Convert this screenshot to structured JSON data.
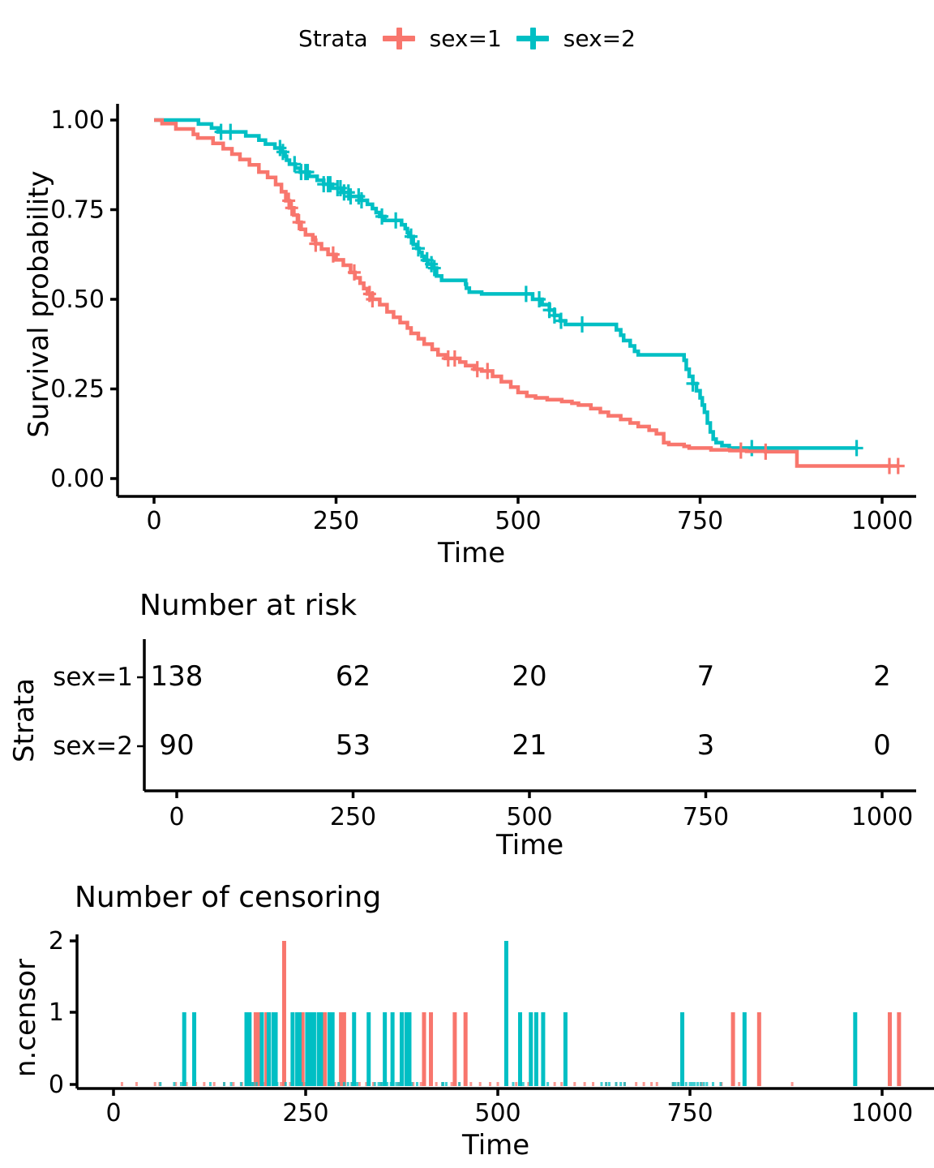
{
  "legend": {
    "title": "Strata",
    "items": [
      {
        "label": "sex=1",
        "color": "#F8766D"
      },
      {
        "label": "sex=2",
        "color": "#00BFC4"
      }
    ]
  },
  "colors": {
    "sex1": "#F8766D",
    "sex2": "#00BFC4",
    "axis": "#000000",
    "background": "#FFFFFF"
  },
  "chart_data": [
    {
      "id": "survival_plot",
      "type": "line",
      "subtype": "kaplan-meier-step",
      "title": "",
      "xlabel": "Time",
      "ylabel": "Survival probability",
      "xticks": [
        0,
        250,
        500,
        750,
        1000
      ],
      "ytick_labels": [
        "1.00",
        "0.75",
        "0.50",
        "0.25",
        "0.00"
      ],
      "ytick_values": [
        1.0,
        0.75,
        0.5,
        0.25,
        0.0
      ],
      "xlim": [
        0,
        1040
      ],
      "ylim": [
        0,
        1
      ],
      "grid": false,
      "legend_position": "top",
      "series": [
        {
          "name": "sex=1",
          "color": "#F8766D",
          "steps": [
            [
              0,
              1.0
            ],
            [
              11,
              0.99
            ],
            [
              30,
              0.975
            ],
            [
              54,
              0.96
            ],
            [
              60,
              0.95
            ],
            [
              81,
              0.935
            ],
            [
              95,
              0.92
            ],
            [
              107,
              0.905
            ],
            [
              118,
              0.89
            ],
            [
              131,
              0.875
            ],
            [
              144,
              0.855
            ],
            [
              156,
              0.84
            ],
            [
              167,
              0.82
            ],
            [
              175,
              0.8
            ],
            [
              181,
              0.775
            ],
            [
              186,
              0.755
            ],
            [
              192,
              0.735
            ],
            [
              197,
              0.715
            ],
            [
              202,
              0.695
            ],
            [
              208,
              0.68
            ],
            [
              218,
              0.665
            ],
            [
              222,
              0.655
            ],
            [
              230,
              0.64
            ],
            [
              239,
              0.625
            ],
            [
              250,
              0.61
            ],
            [
              260,
              0.595
            ],
            [
              270,
              0.575
            ],
            [
              276,
              0.56
            ],
            [
              283,
              0.545
            ],
            [
              288,
              0.53
            ],
            [
              293,
              0.515
            ],
            [
              300,
              0.5
            ],
            [
              310,
              0.485
            ],
            [
              320,
              0.465
            ],
            [
              329,
              0.45
            ],
            [
              338,
              0.435
            ],
            [
              348,
              0.42
            ],
            [
              353,
              0.405
            ],
            [
              363,
              0.39
            ],
            [
              371,
              0.375
            ],
            [
              382,
              0.36
            ],
            [
              390,
              0.345
            ],
            [
              400,
              0.335
            ],
            [
              420,
              0.325
            ],
            [
              428,
              0.315
            ],
            [
              440,
              0.305
            ],
            [
              450,
              0.3
            ],
            [
              465,
              0.285
            ],
            [
              477,
              0.27
            ],
            [
              490,
              0.255
            ],
            [
              500,
              0.24
            ],
            [
              512,
              0.23
            ],
            [
              524,
              0.225
            ],
            [
              540,
              0.22
            ],
            [
              560,
              0.215
            ],
            [
              574,
              0.21
            ],
            [
              583,
              0.205
            ],
            [
              600,
              0.195
            ],
            [
              613,
              0.185
            ],
            [
              624,
              0.175
            ],
            [
              641,
              0.165
            ],
            [
              654,
              0.155
            ],
            [
              665,
              0.145
            ],
            [
              680,
              0.135
            ],
            [
              690,
              0.125
            ],
            [
              700,
              0.1
            ],
            [
              707,
              0.095
            ],
            [
              728,
              0.09
            ],
            [
              735,
              0.085
            ],
            [
              765,
              0.08
            ],
            [
              791,
              0.078
            ],
            [
              814,
              0.076
            ],
            [
              840,
              0.075
            ],
            [
              883,
              0.035
            ],
            [
              1022,
              0.035
            ]
          ],
          "censor_times": [
            185,
            189,
            199,
            222,
            246,
            275,
            296,
            300,
            404,
            413,
            444,
            458,
            806,
            840,
            1010,
            1022
          ]
        },
        {
          "name": "sex=2",
          "color": "#00BFC4",
          "steps": [
            [
              0,
              1.0
            ],
            [
              61,
              0.989
            ],
            [
              79,
              0.978
            ],
            [
              88,
              0.967
            ],
            [
              126,
              0.956
            ],
            [
              144,
              0.944
            ],
            [
              153,
              0.933
            ],
            [
              166,
              0.922
            ],
            [
              175,
              0.911
            ],
            [
              180,
              0.899
            ],
            [
              182,
              0.888
            ],
            [
              186,
              0.877
            ],
            [
              194,
              0.866
            ],
            [
              201,
              0.855
            ],
            [
              213,
              0.843
            ],
            [
              224,
              0.832
            ],
            [
              233,
              0.821
            ],
            [
              245,
              0.81
            ],
            [
              260,
              0.798
            ],
            [
              268,
              0.787
            ],
            [
              285,
              0.776
            ],
            [
              293,
              0.765
            ],
            [
              300,
              0.753
            ],
            [
              305,
              0.742
            ],
            [
              310,
              0.731
            ],
            [
              317,
              0.72
            ],
            [
              340,
              0.708
            ],
            [
              345,
              0.697
            ],
            [
              348,
              0.686
            ],
            [
              350,
              0.675
            ],
            [
              356,
              0.653
            ],
            [
              361,
              0.642
            ],
            [
              364,
              0.631
            ],
            [
              368,
              0.62
            ],
            [
              371,
              0.609
            ],
            [
              376,
              0.598
            ],
            [
              382,
              0.587
            ],
            [
              388,
              0.565
            ],
            [
              395,
              0.553
            ],
            [
              428,
              0.542
            ],
            [
              429,
              0.531
            ],
            [
              433,
              0.52
            ],
            [
              450,
              0.515
            ],
            [
              520,
              0.5
            ],
            [
              533,
              0.485
            ],
            [
              543,
              0.47
            ],
            [
              550,
              0.455
            ],
            [
              558,
              0.44
            ],
            [
              565,
              0.43
            ],
            [
              635,
              0.415
            ],
            [
              641,
              0.4
            ],
            [
              645,
              0.385
            ],
            [
              654,
              0.37
            ],
            [
              660,
              0.355
            ],
            [
              665,
              0.345
            ],
            [
              728,
              0.33
            ],
            [
              731,
              0.305
            ],
            [
              735,
              0.285
            ],
            [
              740,
              0.265
            ],
            [
              745,
              0.245
            ],
            [
              750,
              0.225
            ],
            [
              753,
              0.205
            ],
            [
              756,
              0.185
            ],
            [
              760,
              0.155
            ],
            [
              764,
              0.13
            ],
            [
              768,
              0.11
            ],
            [
              772,
              0.1
            ],
            [
              780,
              0.092
            ],
            [
              790,
              0.085
            ],
            [
              965,
              0.085
            ]
          ],
          "censor_times": [
            92,
            105,
            173,
            177,
            193,
            202,
            208,
            211,
            233,
            239,
            242,
            252,
            256,
            261,
            267,
            270,
            281,
            285,
            313,
            332,
            353,
            363,
            375,
            381,
            385,
            511,
            529,
            543,
            550,
            559,
            588,
            740,
            821,
            965
          ]
        }
      ]
    },
    {
      "id": "risk_table",
      "type": "table",
      "title": "Number at risk",
      "xlabel": "Time",
      "ylabel": "Strata",
      "columns": [
        0,
        250,
        500,
        750,
        1000
      ],
      "rows": [
        {
          "name": "sex=1",
          "color": "#F8766D",
          "values": [
            "138",
            "62",
            "20",
            "7",
            "2"
          ]
        },
        {
          "name": "sex=2",
          "color": "#00BFC4",
          "values": [
            "90",
            "53",
            "21",
            "3",
            "0"
          ]
        }
      ]
    },
    {
      "id": "censor_plot",
      "type": "bar",
      "title": "Number of censoring",
      "xlabel": "Time",
      "ylabel": "n.censor",
      "xticks": [
        0,
        250,
        500,
        750,
        1000
      ],
      "yticks": [
        0,
        1,
        2
      ],
      "ylim": [
        0,
        2
      ],
      "series": [
        {
          "name": "sex=1",
          "color": "#F8766D",
          "bars": [
            [
              185,
              1
            ],
            [
              189,
              1
            ],
            [
              199,
              1
            ],
            [
              222,
              2
            ],
            [
              246,
              1
            ],
            [
              275,
              1
            ],
            [
              296,
              1
            ],
            [
              300,
              1
            ],
            [
              404,
              1
            ],
            [
              413,
              1
            ],
            [
              444,
              1
            ],
            [
              458,
              1
            ],
            [
              806,
              1
            ],
            [
              840,
              1
            ],
            [
              1010,
              1
            ],
            [
              1022,
              1
            ]
          ]
        },
        {
          "name": "sex=2",
          "color": "#00BFC4",
          "bars": [
            [
              92,
              1
            ],
            [
              105,
              1
            ],
            [
              173,
              1
            ],
            [
              177,
              1
            ],
            [
              193,
              1
            ],
            [
              202,
              1
            ],
            [
              208,
              1
            ],
            [
              211,
              1
            ],
            [
              233,
              1
            ],
            [
              239,
              1
            ],
            [
              242,
              1
            ],
            [
              252,
              1
            ],
            [
              256,
              1
            ],
            [
              261,
              1
            ],
            [
              267,
              1
            ],
            [
              270,
              1
            ],
            [
              281,
              1
            ],
            [
              285,
              1
            ],
            [
              313,
              1
            ],
            [
              332,
              1
            ],
            [
              353,
              1
            ],
            [
              363,
              1
            ],
            [
              375,
              1
            ],
            [
              381,
              1
            ],
            [
              385,
              1
            ],
            [
              511,
              2
            ],
            [
              529,
              1
            ],
            [
              543,
              1
            ],
            [
              550,
              1
            ],
            [
              559,
              1
            ],
            [
              588,
              1
            ],
            [
              740,
              1
            ],
            [
              821,
              1
            ],
            [
              965,
              1
            ]
          ]
        }
      ]
    }
  ]
}
